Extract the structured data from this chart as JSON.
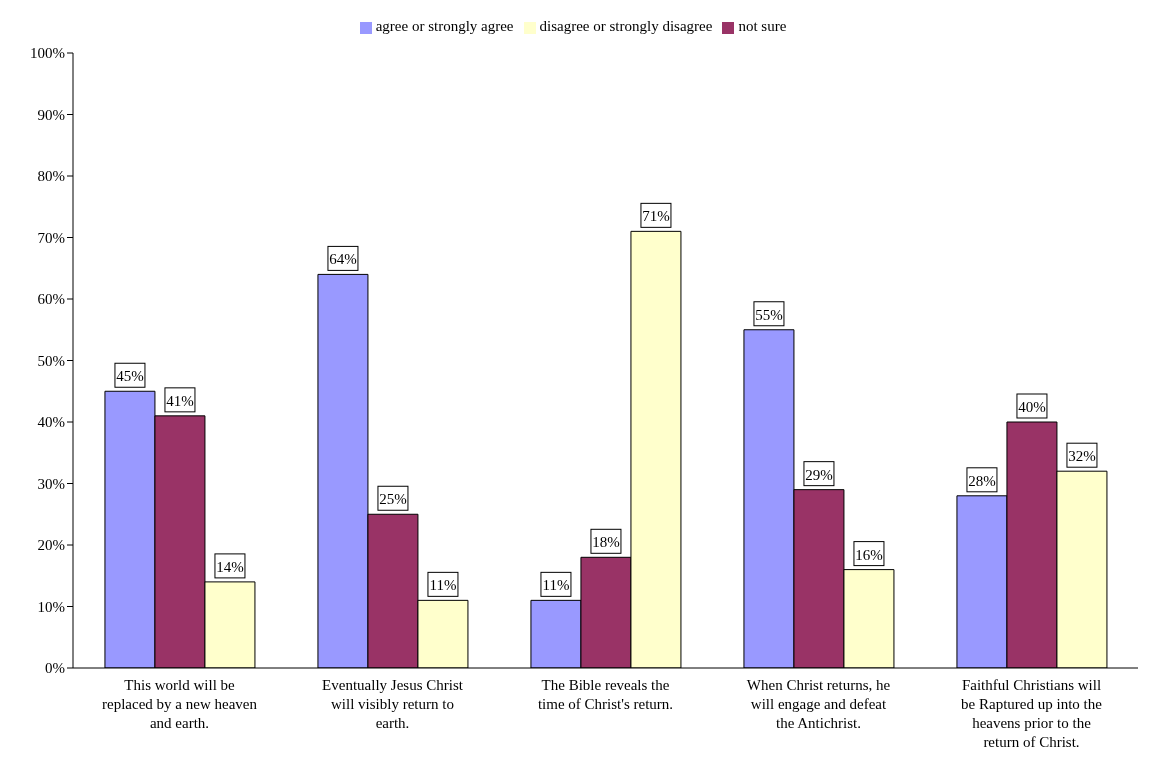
{
  "chart_data": {
    "type": "bar",
    "categories": [
      "This world will be replaced by a new heaven and earth.",
      "Eventually Jesus Christ will visibly return to earth.",
      "The Bible reveals the time of Christ's return.",
      "When Christ returns, he will engage and defeat the Antichrist.",
      "Faithful Christians will be Raptured up into the heavens prior to the return of Christ."
    ],
    "series": [
      {
        "name": "agree or strongly agree",
        "color": "#9999ff",
        "values": [
          45,
          64,
          11,
          55,
          28
        ],
        "value_labels": [
          "45%",
          "64%",
          "11%",
          "55%",
          "28%"
        ]
      },
      {
        "name": "not sure",
        "color": "#993366",
        "values": [
          41,
          25,
          18,
          29,
          40
        ],
        "value_labels": [
          "41%",
          "25%",
          "18%",
          "29%",
          "40%"
        ]
      },
      {
        "name": "disagree or strongly disagree",
        "color": "#ffffcc",
        "values": [
          14,
          11,
          71,
          16,
          32
        ],
        "value_labels": [
          "14%",
          "11%",
          "71%",
          "16%",
          "32%"
        ]
      }
    ],
    "ylim": [
      0,
      100
    ],
    "yticks": [
      {
        "value": 0,
        "label": "0%"
      },
      {
        "value": 10,
        "label": "10%"
      },
      {
        "value": 20,
        "label": "20%"
      },
      {
        "value": 30,
        "label": "30%"
      },
      {
        "value": 40,
        "label": "40%"
      },
      {
        "value": 50,
        "label": "50%"
      },
      {
        "value": 60,
        "label": "60%"
      },
      {
        "value": 70,
        "label": "70%"
      },
      {
        "value": 80,
        "label": "80%"
      },
      {
        "value": 90,
        "label": "90%"
      },
      {
        "value": 100,
        "label": "100%"
      }
    ],
    "grid": false,
    "legend": "top"
  }
}
